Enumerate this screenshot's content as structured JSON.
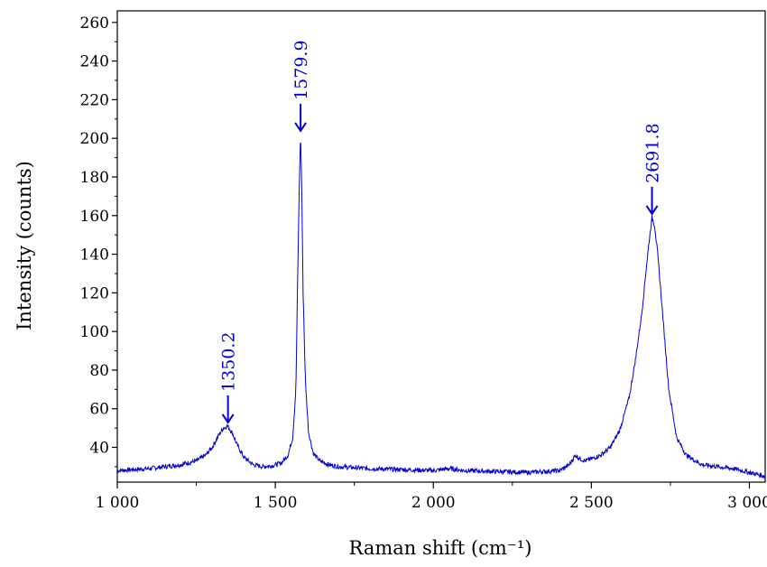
{
  "chart_data": {
    "type": "line",
    "title": "",
    "xlabel": "Raman shift (cm⁻¹)",
    "ylabel": "Intensity (counts)",
    "xlim": [
      1000,
      3050
    ],
    "ylim": [
      22,
      266
    ],
    "x_ticks": [
      {
        "value": 1000,
        "label": "1 000"
      },
      {
        "value": 1500,
        "label": "1 500"
      },
      {
        "value": 2000,
        "label": "2 000"
      },
      {
        "value": 2500,
        "label": "2 500"
      },
      {
        "value": 3000,
        "label": "3 000"
      }
    ],
    "y_ticks": [
      {
        "value": 40,
        "label": "40"
      },
      {
        "value": 60,
        "label": "60"
      },
      {
        "value": 80,
        "label": "80"
      },
      {
        "value": 100,
        "label": "100"
      },
      {
        "value": 120,
        "label": "120"
      },
      {
        "value": 140,
        "label": "140"
      },
      {
        "value": 160,
        "label": "160"
      },
      {
        "value": 180,
        "label": "180"
      },
      {
        "value": 200,
        "label": "200"
      },
      {
        "value": 220,
        "label": "220"
      },
      {
        "value": 240,
        "label": "240"
      },
      {
        "value": 260,
        "label": "260"
      }
    ],
    "grid": false,
    "series": [
      {
        "color": "#0000cc",
        "x": [
          1000,
          1050,
          1100,
          1150,
          1200,
          1250,
          1280,
          1300,
          1320,
          1335,
          1350,
          1365,
          1380,
          1400,
          1430,
          1460,
          1490,
          1520,
          1540,
          1555,
          1565,
          1572,
          1577,
          1580,
          1583,
          1588,
          1595,
          1605,
          1620,
          1640,
          1670,
          1700,
          1750,
          1800,
          1900,
          2000,
          2050,
          2100,
          2200,
          2300,
          2400,
          2430,
          2450,
          2465,
          2480,
          2500,
          2530,
          2560,
          2590,
          2620,
          2640,
          2660,
          2675,
          2685,
          2692,
          2700,
          2710,
          2725,
          2745,
          2770,
          2800,
          2850,
          2900,
          2950,
          3000,
          3050
        ],
        "y": [
          28,
          28.5,
          29,
          30,
          31,
          33,
          36,
          40,
          46,
          50,
          51,
          47,
          41,
          35,
          31,
          30,
          30.5,
          32,
          36,
          45,
          70,
          140,
          185,
          202,
          180,
          120,
          75,
          48,
          37,
          33,
          31,
          30,
          29.5,
          29,
          28.5,
          28,
          29,
          28,
          27.5,
          27,
          28,
          31,
          36,
          34,
          33,
          34,
          36,
          40,
          49,
          66,
          86,
          110,
          135,
          150,
          159,
          155,
          140,
          110,
          70,
          45,
          36,
          31,
          30,
          29,
          27,
          25
        ]
      }
    ],
    "annotations": [
      {
        "x": 1350.2,
        "y": 51,
        "label": "1350.2"
      },
      {
        "x": 1579.9,
        "y": 202,
        "label": "1579.9"
      },
      {
        "x": 2691.8,
        "y": 159,
        "label": "2691.8"
      }
    ]
  }
}
